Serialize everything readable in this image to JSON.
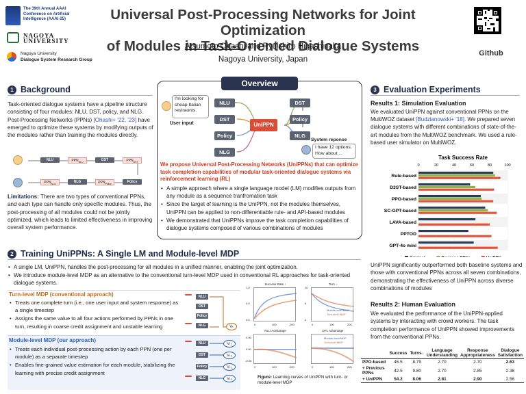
{
  "header": {
    "conf": [
      "The 39th Annual AAAI",
      "Conference on Artificial",
      "Intelligence (AAAI-25)"
    ],
    "univ_logo": "NAGOYA UNIVERSITY",
    "lab": [
      "Nagoya University",
      "Dialogue System Research Group"
    ],
    "title_line1": "Universal Post-Processing Networks for Joint Optimization",
    "title_line2": "of Modules in Task-Oriented Dialogue Systems",
    "author1": "Atsumoto Ohashi",
    "author_rest": " and Ryuichiro Higashinaka",
    "affiliation": "Nagoya University, Japan",
    "github": "Github"
  },
  "background": {
    "num": "1",
    "title": "Background",
    "text": "Task-oriented dialogue systems have a pipeline structure consisting of four modules: NLU, DST, policy, and NLG. Post-Processing Networks (PPNs)",
    "cite": "[Ohashi+ '22, '23]",
    "text2": " have emerged to optimize these systems by modifying outputs of the modules rather than training the modules directly.",
    "pipe_top": [
      "NLU",
      "PPN",
      "DST",
      "PPN"
    ],
    "pipe_top_sub": [
      "NLU",
      "DST"
    ],
    "pipe_bot": [
      "PPN",
      "NLG",
      "PPN",
      "Policy"
    ],
    "pipe_bot_sub": [
      "NLG",
      "Policy"
    ],
    "lim_label": "Limitations:",
    "lim_text": " There are two types of conventional PPNs, and each type can handle only specific modules. Thus, the post-processing of all modules could not be jointly optimized, which leads to limited effectiveness in improving overall system performance."
  },
  "overview": {
    "title": "Overview",
    "user_bubble": "I'm looking for cheap Italian restraunts.",
    "user_input": "User input",
    "left_mods": [
      "NLU",
      "DST",
      "Policy",
      "NLG"
    ],
    "right_mods": [
      "DST",
      "Policy",
      "NLG"
    ],
    "center": "UniPPN",
    "sys_label": "System reponse",
    "sys_bubble": "I have 12 options. How about ...",
    "red_text": "We propose Universal Post-Processing Networks (UniPPNs) that can optimize task completion capabilities of modular task-oriented dialogue systems via reinforcement learning (RL)",
    "bullets": [
      "A simple approach where a single language model (LM) modifies outputs from any module as a sequence tranfromation task",
      "Since the target of learning is the UniPPN, not the modules themselves, UniPPN can be applied to non-differentiable rule- and API-based modules",
      "We demonstrated that UniPPNs improve the task completion capabilities of dialogue systems composed of various combinations of modules"
    ]
  },
  "training": {
    "num": "2",
    "title": "Training UniPPNs: A Single LM and Module-level MDP",
    "bullets": [
      "A single LM, UniPPN, handles the post-processing for all modules in a unified manner, enabling the joint optimization.",
      "We introduce module-level MDP as an alternative to the conventional turn-level MDP used in conventional RL approaches for task-oriented dialogue systems."
    ],
    "turn_title": "Turn-level MDP (conventional approach)",
    "turn_bullets": [
      "Treats one complete turn (i.e., one user input and system response) as a single timestep",
      "Assigns the same value to all four actions performed by PPNs in one turn, resulting in coarse credit assignment and unstable learning"
    ],
    "mod_title": "Module-level MDP (our approach)",
    "mod_bullets": [
      "Treats each individual post-processing action by each PPN (one per module) as a separate timestep",
      "Enables fine-grained value estimation for each module, stabilizing the learning with precise credit assignment"
    ],
    "diag_mods": [
      "NLU",
      "DST",
      "Policy",
      "NLG"
    ],
    "v_single": "Vₜ",
    "v_list": [
      "Vₜ₁",
      "Vₜ₂",
      "Vₜ₃",
      "Vₜ₄"
    ],
    "plots": [
      {
        "title": "Success Rate ↑",
        "yt": [
          "1.0",
          "0.9",
          "0.8",
          "0.7",
          "0.6"
        ],
        "xt": [
          "0",
          "100",
          "200"
        ]
      },
      {
        "title": "Turn ↓",
        "yt": [
          "10",
          "8",
          "6",
          "4",
          "2"
        ],
        "xt": [
          "0",
          "100",
          "200"
        ]
      },
      {
        "title": "NLU Advantage",
        "yt": [
          "0.05",
          "0.00",
          "-0.05"
        ],
        "xt": [
          "0",
          "100",
          "200"
        ]
      },
      {
        "title": "DPL Advantage",
        "yt": [
          "",
          "",
          ""
        ],
        "xt": [
          "0",
          "100",
          "200"
        ]
      }
    ],
    "legend": [
      "Module-level MDP",
      "Turn-level MDP"
    ],
    "fig_label": "Figure:",
    "fig_caption": " Learning curves of UniPPN with turn- or module-level MDP"
  },
  "eval": {
    "num": "3",
    "title": "Evaluation Experiments",
    "r1_title": "Results 1: Simulation Evaluation",
    "r1_a": "We evaluated UniPPN against conventional PPNs on the MultiWOZ dataset ",
    "r1_cite": "[Budzianowski+ '18]",
    "r1_b": ". We prepared seven dialogue systems with different combinations of state-of-the-art modules from the MultiWOZ benchmark. We used a rule-based user simulator on MultiWOZ.",
    "r1_after": "UniPPN significantly outperformed both baseline systems and those with conventional PPNs across all seven combinations, demonstrating the effectiveness of UniPPN across diverse combinations of modules",
    "r2_title": "Results 2: Human Evaluation",
    "r2_text": "We evaluated the performance of the UniPPN-applied systems by interacting with crowd workers. The task completion performance of UniPPN showed improvements from the conventional PPNs.",
    "table": {
      "headers": [
        "",
        "Success",
        "Turns↓",
        "Language Understanding",
        "Response Appropriateness",
        "Dialogue Satisfaction"
      ],
      "rows": [
        [
          "PPO-based",
          "46.5",
          "8.79",
          "2.70",
          "2.70",
          "2.63"
        ],
        [
          "+ Previous PPNs",
          "42.5",
          "9.80",
          "2.70",
          "2.85",
          "2.38"
        ],
        [
          "+ UniPPN",
          "54.2",
          "8.06",
          "2.81",
          "2.90",
          "2.56"
        ]
      ]
    }
  },
  "chart_data": {
    "type": "bar",
    "title": "Task Success Rate",
    "categories": [
      "Rule-based",
      "D3ST-based",
      "PPO-based",
      "SC-GPT-based",
      "LAVA-based",
      "PPTOD",
      "GPT-4o mini"
    ],
    "series": [
      {
        "name": "Original",
        "color": "#2b3a55",
        "values": [
          84,
          58,
          70,
          75,
          64,
          56,
          62
        ]
      },
      {
        "name": "Previous PPNs",
        "color": "#8db34a",
        "values": [
          86,
          64,
          71,
          78,
          0,
          0,
          0
        ]
      },
      {
        "name": "UniPPN",
        "color": "#e0553a",
        "values": [
          92,
          85,
          84,
          88,
          80,
          82,
          89
        ]
      }
    ],
    "xlim": [
      0,
      100
    ],
    "xticks": [
      "0",
      "20",
      "40",
      "60",
      "80",
      "100"
    ]
  }
}
